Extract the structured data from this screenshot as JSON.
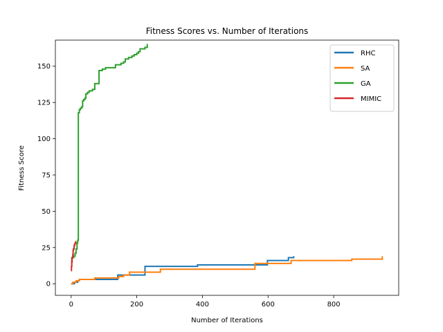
{
  "chart_data": {
    "type": "line",
    "title": "Fitness Scores vs. Number of Iterations",
    "xlabel": "Number of Iterations",
    "ylabel": "Fitness Score",
    "xlim": [
      -48,
      998
    ],
    "ylim": [
      -8,
      168
    ],
    "xticks": [
      0,
      200,
      400,
      600,
      800
    ],
    "yticks": [
      0,
      25,
      50,
      75,
      100,
      125,
      150
    ],
    "grid": false,
    "legend_position": "top-right",
    "series": [
      {
        "name": "RHC",
        "color": "#1f77b4",
        "step": true,
        "points": [
          [
            0,
            0
          ],
          [
            10,
            1
          ],
          [
            15,
            1
          ],
          [
            20,
            2
          ],
          [
            25,
            3
          ],
          [
            140,
            3
          ],
          [
            142,
            6
          ],
          [
            220,
            6
          ],
          [
            225,
            12
          ],
          [
            380,
            12
          ],
          [
            385,
            13
          ],
          [
            595,
            13
          ],
          [
            598,
            16
          ],
          [
            660,
            16
          ],
          [
            662,
            18
          ],
          [
            675,
            18
          ],
          [
            678,
            19
          ]
        ]
      },
      {
        "name": "SA",
        "color": "#ff7f0e",
        "step": true,
        "points": [
          [
            0,
            0
          ],
          [
            5,
            1
          ],
          [
            15,
            2
          ],
          [
            25,
            3
          ],
          [
            70,
            3
          ],
          [
            72,
            4
          ],
          [
            140,
            4
          ],
          [
            145,
            5
          ],
          [
            160,
            6
          ],
          [
            175,
            6
          ],
          [
            178,
            8
          ],
          [
            270,
            8
          ],
          [
            272,
            10
          ],
          [
            555,
            10
          ],
          [
            560,
            14
          ],
          [
            660,
            14
          ],
          [
            670,
            16
          ],
          [
            850,
            16
          ],
          [
            855,
            17
          ],
          [
            945,
            17
          ],
          [
            948,
            19
          ]
        ]
      },
      {
        "name": "GA",
        "color": "#2ca02c",
        "step": true,
        "points": [
          [
            0,
            15
          ],
          [
            2,
            18
          ],
          [
            5,
            18
          ],
          [
            8,
            19
          ],
          [
            12,
            21
          ],
          [
            15,
            24
          ],
          [
            18,
            28
          ],
          [
            20,
            30
          ],
          [
            22,
            118
          ],
          [
            25,
            120
          ],
          [
            28,
            121
          ],
          [
            32,
            122
          ],
          [
            35,
            126
          ],
          [
            38,
            127
          ],
          [
            42,
            128
          ],
          [
            45,
            131
          ],
          [
            50,
            132
          ],
          [
            55,
            133
          ],
          [
            60,
            133
          ],
          [
            65,
            134
          ],
          [
            72,
            138
          ],
          [
            78,
            138
          ],
          [
            85,
            147
          ],
          [
            95,
            148
          ],
          [
            105,
            149
          ],
          [
            120,
            149
          ],
          [
            135,
            151
          ],
          [
            145,
            151
          ],
          [
            152,
            152
          ],
          [
            160,
            153
          ],
          [
            165,
            155
          ],
          [
            175,
            156
          ],
          [
            185,
            157
          ],
          [
            192,
            158
          ],
          [
            200,
            159
          ],
          [
            205,
            160
          ],
          [
            210,
            162
          ],
          [
            225,
            163
          ],
          [
            232,
            165
          ],
          [
            233,
            165
          ]
        ]
      },
      {
        "name": "MIMIC",
        "color": "#d62728",
        "step": true,
        "points": [
          [
            0,
            9
          ],
          [
            1,
            12
          ],
          [
            2,
            15
          ],
          [
            3,
            18
          ],
          [
            5,
            20
          ],
          [
            6,
            23
          ],
          [
            7,
            24
          ],
          [
            9,
            26
          ],
          [
            10,
            27
          ],
          [
            12,
            28
          ],
          [
            14,
            29
          ],
          [
            16,
            29
          ]
        ]
      }
    ]
  }
}
